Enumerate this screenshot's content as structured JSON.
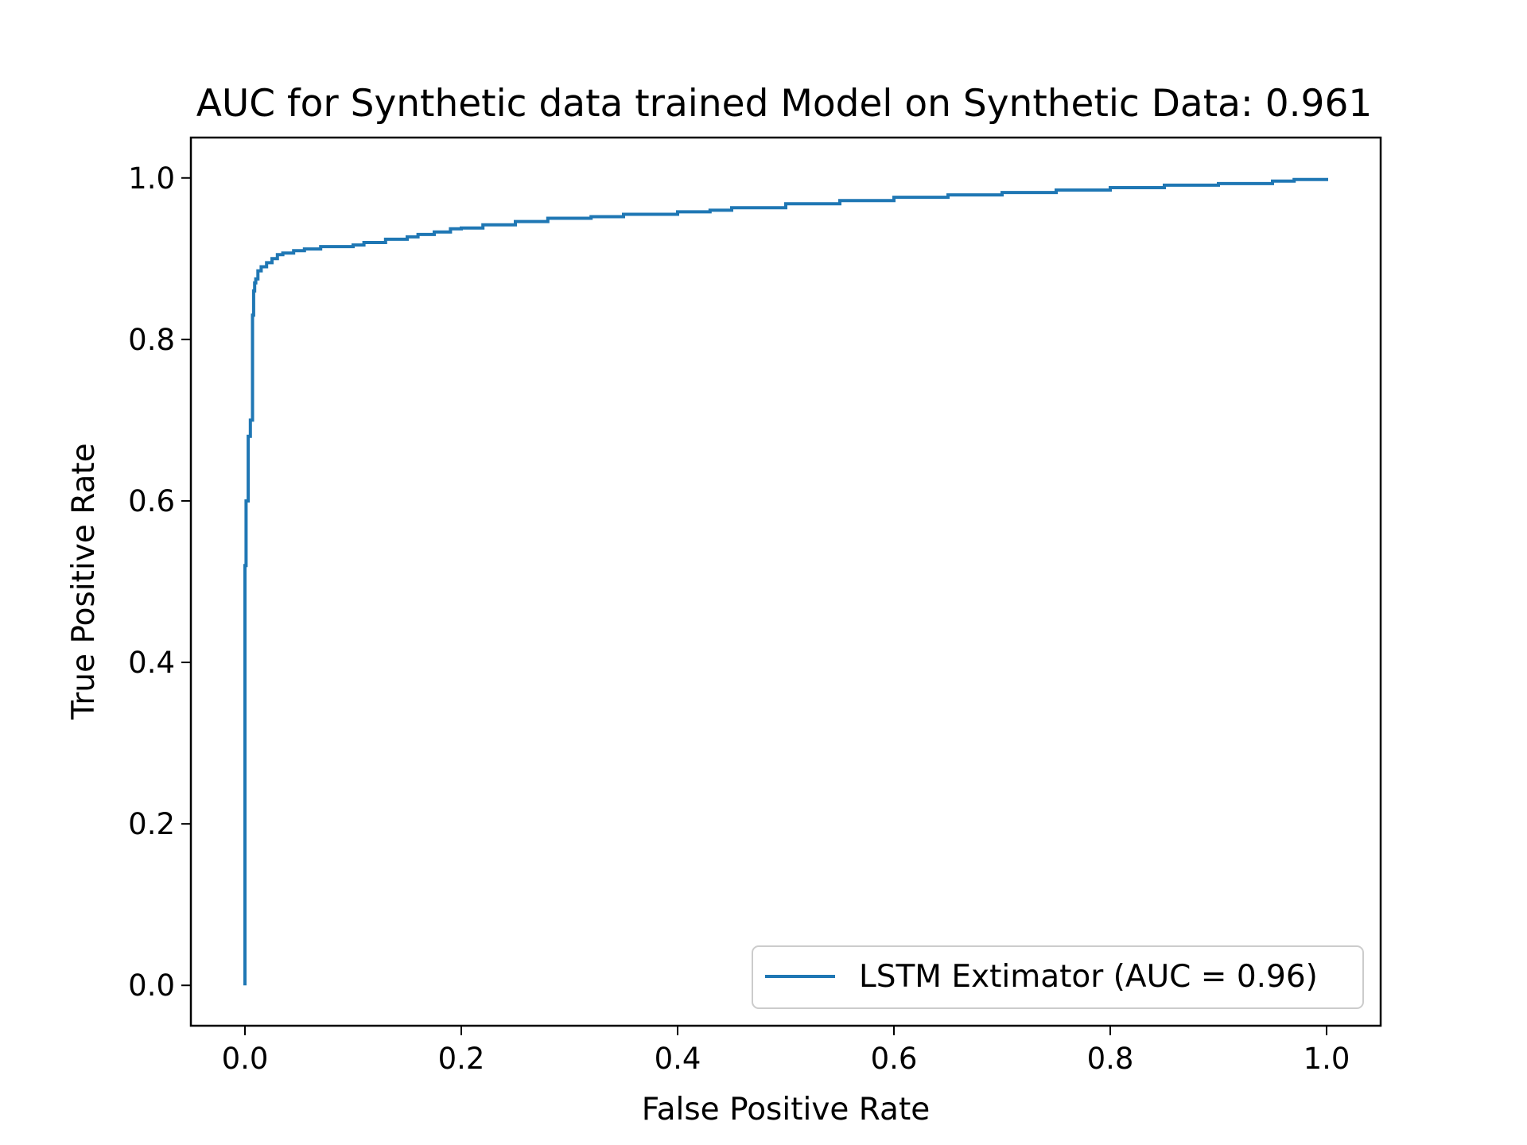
{
  "chart_data": {
    "type": "line",
    "title": "AUC for Synthetic data trained Model on Synthetic Data: 0.961",
    "xlabel": "False Positive Rate",
    "ylabel": "True Positive Rate",
    "xlim": [
      -0.05,
      1.05
    ],
    "ylim": [
      -0.05,
      1.05
    ],
    "xticks": [
      0.0,
      0.2,
      0.4,
      0.6,
      0.8,
      1.0
    ],
    "yticks": [
      0.0,
      0.2,
      0.4,
      0.6,
      0.8,
      1.0
    ],
    "xtick_labels": [
      "0.0",
      "0.2",
      "0.4",
      "0.6",
      "0.8",
      "1.0"
    ],
    "ytick_labels": [
      "0.0",
      "0.2",
      "0.4",
      "0.6",
      "0.8",
      "1.0"
    ],
    "grid": false,
    "legend": {
      "position": "lower-right",
      "entries": [
        "LSTM Extimator (AUC = 0.96)"
      ]
    },
    "series": [
      {
        "name": "LSTM Extimator (AUC = 0.96)",
        "color": "#1f77b4",
        "x": [
          0.0,
          0.0,
          0.001,
          0.001,
          0.003,
          0.003,
          0.005,
          0.005,
          0.007,
          0.007,
          0.008,
          0.008,
          0.009,
          0.009,
          0.01,
          0.012,
          0.015,
          0.02,
          0.025,
          0.03,
          0.035,
          0.045,
          0.055,
          0.07,
          0.08,
          0.1,
          0.11,
          0.13,
          0.15,
          0.16,
          0.175,
          0.19,
          0.2,
          0.22,
          0.25,
          0.28,
          0.32,
          0.35,
          0.4,
          0.43,
          0.45,
          0.5,
          0.55,
          0.6,
          0.65,
          0.7,
          0.75,
          0.8,
          0.85,
          0.9,
          0.95,
          0.97,
          1.0
        ],
        "y": [
          0.0,
          0.52,
          0.56,
          0.6,
          0.61,
          0.68,
          0.69,
          0.7,
          0.82,
          0.83,
          0.84,
          0.86,
          0.86,
          0.87,
          0.875,
          0.885,
          0.89,
          0.895,
          0.9,
          0.905,
          0.907,
          0.91,
          0.912,
          0.915,
          0.915,
          0.917,
          0.92,
          0.924,
          0.927,
          0.93,
          0.933,
          0.937,
          0.938,
          0.942,
          0.946,
          0.95,
          0.952,
          0.955,
          0.958,
          0.96,
          0.963,
          0.968,
          0.972,
          0.976,
          0.979,
          0.982,
          0.985,
          0.988,
          0.991,
          0.993,
          0.996,
          0.998,
          1.0
        ]
      }
    ]
  }
}
